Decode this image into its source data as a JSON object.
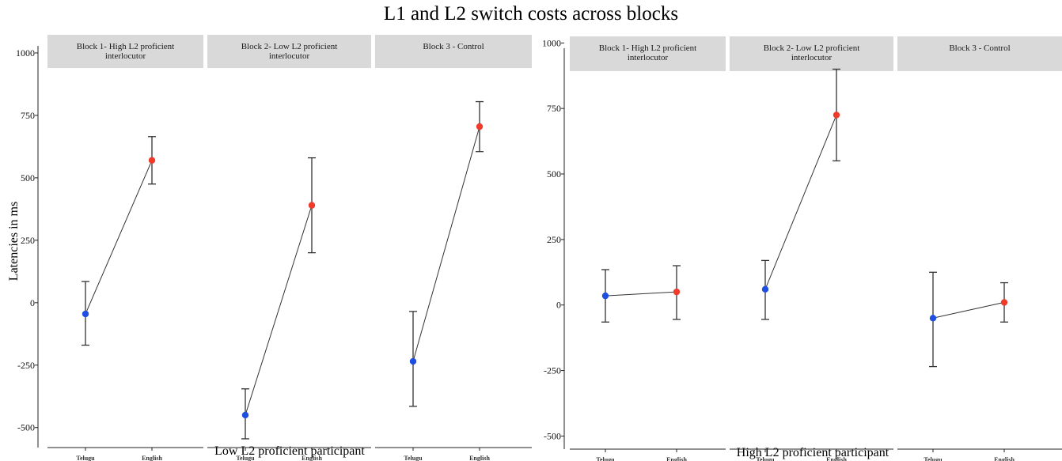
{
  "title": "L1 and L2 switch costs across blocks",
  "colors": {
    "Telugu": "#1f4fe0",
    "English": "#f03a2a",
    "strip_bg": "#d9d9d9",
    "line": "#333333"
  },
  "chart_data": [
    {
      "type": "line",
      "xlabel": "Low L2 proficient participant",
      "ylabel": "Latencies in ms",
      "ylim": [
        -580,
        1060
      ],
      "yticks": [
        -500,
        -250,
        0,
        250,
        500,
        750,
        1000
      ],
      "categories": [
        "Telugu",
        "English"
      ],
      "grid": false,
      "panels": [
        {
          "label": "Block 1- High L2 proficient interlocutor",
          "points": [
            {
              "x": "Telugu",
              "y": -45,
              "low": -170,
              "high": 85
            },
            {
              "x": "English",
              "y": 570,
              "low": 475,
              "high": 665
            }
          ]
        },
        {
          "label": "Block 2- Low L2 proficient interlocutor",
          "points": [
            {
              "x": "Telugu",
              "y": -450,
              "low": -545,
              "high": -345
            },
            {
              "x": "English",
              "y": 390,
              "low": 200,
              "high": 580
            }
          ]
        },
        {
          "label": "Block 3 - Control",
          "points": [
            {
              "x": "Telugu",
              "y": -235,
              "low": -415,
              "high": -35
            },
            {
              "x": "English",
              "y": 705,
              "low": 605,
              "high": 805
            }
          ]
        }
      ]
    },
    {
      "type": "line",
      "xlabel": "High L2 proficient participant",
      "ylabel": "",
      "ylim": [
        -550,
        1010
      ],
      "yticks": [
        -500,
        -250,
        0,
        250,
        500,
        750,
        1000
      ],
      "categories": [
        "Telugu",
        "English"
      ],
      "grid": false,
      "panels": [
        {
          "label": "Block 1- High L2 proficient interlocutor",
          "points": [
            {
              "x": "Telugu",
              "y": 35,
              "low": -65,
              "high": 135
            },
            {
              "x": "English",
              "y": 50,
              "low": -55,
              "high": 150
            }
          ]
        },
        {
          "label": "Block 2- Low L2 proficient interlocutor",
          "points": [
            {
              "x": "Telugu",
              "y": 60,
              "low": -55,
              "high": 170
            },
            {
              "x": "English",
              "y": 725,
              "low": 550,
              "high": 900
            }
          ]
        },
        {
          "label": "Block 3 - Control",
          "points": [
            {
              "x": "Telugu",
              "y": -50,
              "low": -235,
              "high": 125
            },
            {
              "x": "English",
              "y": 10,
              "low": -65,
              "high": 85
            }
          ]
        }
      ]
    }
  ]
}
